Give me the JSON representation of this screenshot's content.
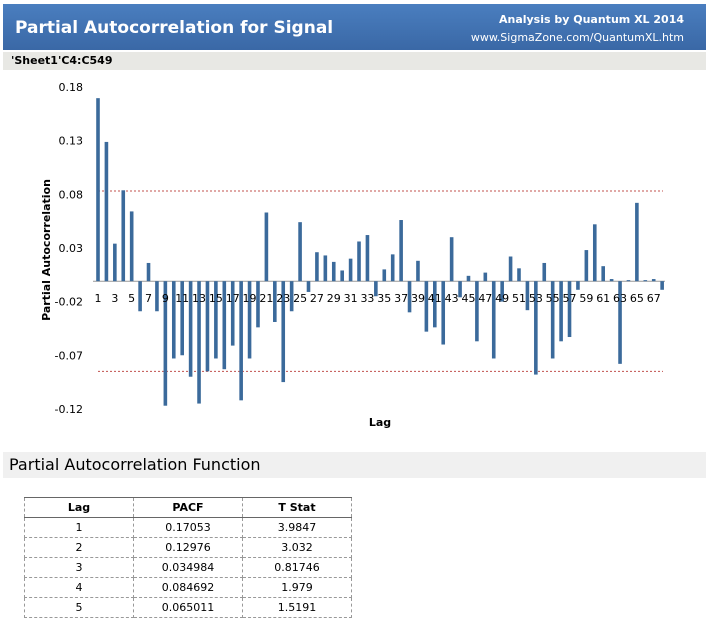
{
  "header": {
    "title": "Partial Autocorrelation for Signal",
    "credit": "Analysis by Quantum XL 2014",
    "url": "www.SigmaZone.com/QuantumXL.htm",
    "range": "'Sheet1'C4:C549"
  },
  "chart_data": {
    "type": "bar",
    "x_label": "Lag",
    "y_label": "Partial Autocorrelation",
    "color": "#3b6a9b",
    "categories": [
      1,
      null,
      3,
      null,
      5,
      null,
      7,
      null,
      9,
      null,
      11,
      null,
      13,
      null,
      15,
      null,
      17,
      null,
      19,
      null,
      21,
      null,
      23,
      null,
      25,
      null,
      27,
      null,
      29,
      null,
      31,
      null,
      33,
      null,
      35,
      null,
      37,
      null,
      39,
      null,
      41,
      null,
      43,
      null,
      45,
      null,
      47,
      null,
      49,
      null,
      51,
      null,
      53,
      null,
      55,
      null,
      57,
      null,
      59,
      null,
      61,
      null,
      63,
      null,
      65,
      null,
      67,
      null
    ],
    "values": [
      0.17053,
      0.12976,
      0.034984,
      0.084692,
      0.065011,
      -0.028,
      0.017,
      -0.028,
      -0.116,
      -0.072,
      -0.069,
      -0.089,
      -0.114,
      -0.084,
      -0.072,
      -0.082,
      -0.06,
      -0.111,
      -0.072,
      -0.043,
      0.064,
      -0.038,
      -0.094,
      -0.028,
      0.055,
      -0.01,
      0.027,
      0.024,
      0.018,
      0.01,
      0.021,
      0.037,
      0.043,
      -0.014,
      0.011,
      0.025,
      0.057,
      -0.029,
      0.019,
      -0.047,
      -0.043,
      -0.059,
      0.041,
      -0.015,
      0.005,
      -0.056,
      0.008,
      -0.072,
      -0.019,
      0.023,
      0.012,
      -0.027,
      -0.087,
      0.017,
      -0.072,
      -0.056,
      -0.052,
      -0.008,
      0.029,
      0.053,
      0.014,
      0.002,
      -0.077,
      0.001,
      0.073,
      0.001,
      0.002,
      -0.008
    ],
    "reference_lines": [
      0.084,
      -0.084
    ],
    "reference_color": "#c0504d",
    "ylim": [
      -0.12,
      0.18
    ],
    "yticks": [
      0.18,
      0.13,
      0.08,
      0.03,
      -0.02,
      -0.07,
      -0.12
    ]
  },
  "section": {
    "title": "Partial Autocorrelation Function"
  },
  "table": {
    "columns": [
      "Lag",
      "PACF",
      "T Stat"
    ],
    "rows": [
      [
        1,
        0.17053,
        3.9847
      ],
      [
        2,
        0.12976,
        3.032
      ],
      [
        3,
        0.034984,
        0.81746
      ],
      [
        4,
        0.084692,
        1.979
      ],
      [
        5,
        0.065011,
        1.5191
      ]
    ]
  }
}
